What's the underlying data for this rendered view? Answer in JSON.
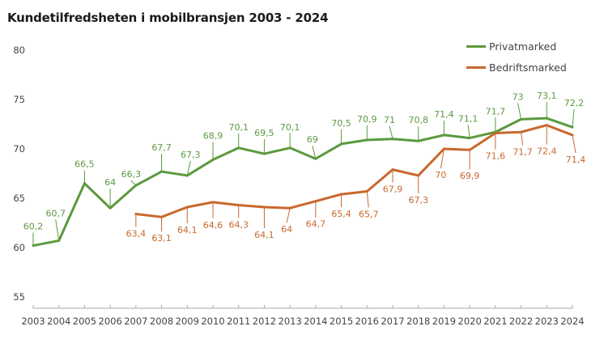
{
  "chart_data": {
    "type": "line",
    "title": "Kundetilfredsheten i mobilbransjen 2003 - 2024",
    "xlabel": "",
    "ylabel": "",
    "ylim": [
      55,
      80
    ],
    "yticks": [
      "55",
      "60",
      "65",
      "70",
      "75",
      "80"
    ],
    "grid": false,
    "legend_position": "top-right",
    "categories": [
      "2003",
      "2004",
      "2005",
      "2006",
      "2007",
      "2008",
      "2009",
      "2010",
      "2011",
      "2012",
      "2013",
      "2014",
      "2015",
      "2016",
      "2017",
      "2018",
      "2019",
      "2020",
      "2021",
      "2022",
      "2023",
      "2024"
    ],
    "series": [
      {
        "name": "Privatmarked",
        "color": "#5b9a3e",
        "values": [
          60.2,
          60.7,
          66.5,
          64,
          66.3,
          67.7,
          67.3,
          68.9,
          70.1,
          69.5,
          70.1,
          69,
          70.5,
          70.9,
          71,
          70.8,
          71.4,
          71.1,
          71.7,
          73,
          73.1,
          72.2
        ],
        "labels": [
          "60,2",
          "60,7",
          "66,5",
          "64",
          "66,3",
          "67,7",
          "67,3",
          "68,9",
          "70,1",
          "69,5",
          "70,1",
          "69",
          "70,5",
          "70,9",
          "71",
          "70,8",
          "71,4",
          "71,1",
          "71,7",
          "73",
          "73,1",
          "72,2"
        ]
      },
      {
        "name": "Bedriftsmarked",
        "color": "#c8682e",
        "values": [
          null,
          null,
          null,
          null,
          63.4,
          63.1,
          64.1,
          64.6,
          64.3,
          64.1,
          64,
          64.7,
          65.4,
          65.7,
          67.9,
          67.3,
          70,
          69.9,
          71.6,
          71.7,
          72.4,
          71.4
        ],
        "labels": [
          null,
          null,
          null,
          null,
          "63,4",
          "63,1",
          "64,1",
          "64,6",
          "64,3",
          "64,1",
          "64",
          "64,7",
          "65,4",
          "65,7",
          "67,9",
          "67,3",
          "70",
          "69,9",
          "71,6",
          "71,7",
          "72,4",
          "71,4"
        ]
      }
    ]
  }
}
